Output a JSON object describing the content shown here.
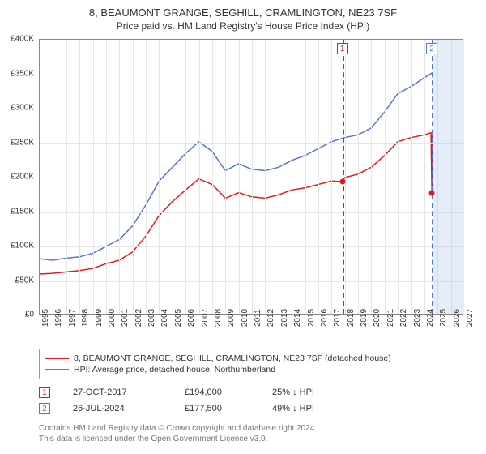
{
  "title_line1": "8, BEAUMONT GRANGE, SEGHILL, CRAMLINGTON, NE23 7SF",
  "title_line2": "Price paid vs. HM Land Registry's House Price Index (HPI)",
  "chart": {
    "type": "line",
    "background_color": "#ffffff",
    "grid_color": "#e6e6e6",
    "axis_color": "#888888",
    "xlim": [
      1995,
      2027
    ],
    "ylim": [
      0,
      400000
    ],
    "y_ticks": [
      0,
      50000,
      100000,
      150000,
      200000,
      250000,
      300000,
      350000,
      400000
    ],
    "y_tick_labels": [
      "£0",
      "£50K",
      "£100K",
      "£150K",
      "£200K",
      "£250K",
      "£300K",
      "£350K",
      "£400K"
    ],
    "x_ticks": [
      1995,
      1996,
      1997,
      1998,
      1999,
      2000,
      2001,
      2002,
      2003,
      2004,
      2005,
      2006,
      2007,
      2008,
      2009,
      2010,
      2011,
      2012,
      2013,
      2014,
      2015,
      2016,
      2017,
      2018,
      2019,
      2020,
      2021,
      2022,
      2023,
      2024,
      2025,
      2026,
      2027
    ],
    "x_tick_labels": [
      "1995",
      "1996",
      "1997",
      "1998",
      "1999",
      "2000",
      "2001",
      "2002",
      "2003",
      "2004",
      "2005",
      "2006",
      "2007",
      "2008",
      "2009",
      "2010",
      "2011",
      "2012",
      "2013",
      "2014",
      "2015",
      "2016",
      "2017",
      "2018",
      "2019",
      "2020",
      "2021",
      "2022",
      "2023",
      "2024",
      "2025",
      "2026",
      "2027"
    ],
    "label_fontsize": 10,
    "shaded_region": {
      "x_start": 2024.6,
      "x_end": 2027,
      "color": "rgba(160,190,230,0.28)"
    },
    "markers": [
      {
        "n": "1",
        "x": 2017.82,
        "color": "#e11b1b"
      },
      {
        "n": "2",
        "x": 2024.57,
        "color": "#5577cc"
      }
    ],
    "series": [
      {
        "name": "price_paid",
        "color": "#e11b1b",
        "width": 1.5,
        "data": [
          [
            1995,
            60000
          ],
          [
            1996,
            61000
          ],
          [
            1997,
            63000
          ],
          [
            1998,
            65000
          ],
          [
            1999,
            68000
          ],
          [
            2000,
            75000
          ],
          [
            2001,
            80000
          ],
          [
            2002,
            92000
          ],
          [
            2003,
            115000
          ],
          [
            2004,
            145000
          ],
          [
            2005,
            165000
          ],
          [
            2006,
            182000
          ],
          [
            2007,
            198000
          ],
          [
            2008,
            190000
          ],
          [
            2009,
            170000
          ],
          [
            2010,
            178000
          ],
          [
            2011,
            172000
          ],
          [
            2012,
            170000
          ],
          [
            2013,
            175000
          ],
          [
            2014,
            182000
          ],
          [
            2015,
            185000
          ],
          [
            2016,
            190000
          ],
          [
            2017,
            195000
          ],
          [
            2017.82,
            194000
          ],
          [
            2018,
            200000
          ],
          [
            2019,
            205000
          ],
          [
            2020,
            215000
          ],
          [
            2021,
            232000
          ],
          [
            2022,
            252000
          ],
          [
            2023,
            258000
          ],
          [
            2024,
            262000
          ],
          [
            2024.5,
            265000
          ],
          [
            2024.57,
            177500
          ],
          [
            2024.6,
            262000
          ]
        ],
        "sale_points": [
          {
            "x": 2017.82,
            "y": 194000
          },
          {
            "x": 2024.57,
            "y": 177500
          }
        ]
      },
      {
        "name": "hpi",
        "color": "#5577cc",
        "width": 1.5,
        "data": [
          [
            1995,
            82000
          ],
          [
            1996,
            80000
          ],
          [
            1997,
            83000
          ],
          [
            1998,
            85000
          ],
          [
            1999,
            90000
          ],
          [
            2000,
            100000
          ],
          [
            2001,
            110000
          ],
          [
            2002,
            130000
          ],
          [
            2003,
            160000
          ],
          [
            2004,
            195000
          ],
          [
            2005,
            215000
          ],
          [
            2006,
            235000
          ],
          [
            2007,
            252000
          ],
          [
            2008,
            238000
          ],
          [
            2009,
            210000
          ],
          [
            2010,
            220000
          ],
          [
            2011,
            212000
          ],
          [
            2012,
            210000
          ],
          [
            2013,
            215000
          ],
          [
            2014,
            225000
          ],
          [
            2015,
            232000
          ],
          [
            2016,
            242000
          ],
          [
            2017,
            252000
          ],
          [
            2018,
            258000
          ],
          [
            2019,
            262000
          ],
          [
            2020,
            272000
          ],
          [
            2021,
            295000
          ],
          [
            2022,
            322000
          ],
          [
            2023,
            332000
          ],
          [
            2024,
            345000
          ],
          [
            2024.6,
            352000
          ]
        ]
      }
    ]
  },
  "legend": {
    "items": [
      {
        "color": "#e11b1b",
        "label": "8, BEAUMONT GRANGE, SEGHILL, CRAMLINGTON, NE23 7SF (detached house)"
      },
      {
        "color": "#5577cc",
        "label": "HPI: Average price, detached house, Northumberland"
      }
    ]
  },
  "events": [
    {
      "n": "1",
      "color": "#e11b1b",
      "date": "27-OCT-2017",
      "price": "£194,000",
      "delta": "25% ↓ HPI"
    },
    {
      "n": "2",
      "color": "#5577cc",
      "date": "26-JUL-2024",
      "price": "£177,500",
      "delta": "49% ↓ HPI"
    }
  ],
  "attribution_line1": "Contains HM Land Registry data © Crown copyright and database right 2024.",
  "attribution_line2": "This data is licensed under the Open Government Licence v3.0."
}
